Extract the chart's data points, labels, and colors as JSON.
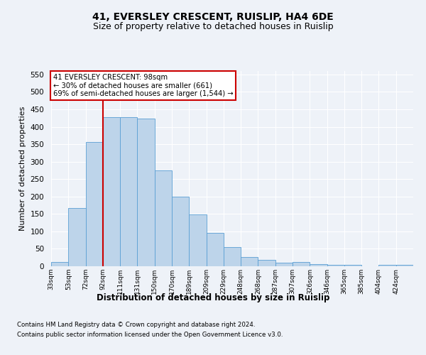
{
  "title": "41, EVERSLEY CRESCENT, RUISLIP, HA4 6DE",
  "subtitle": "Size of property relative to detached houses in Ruislip",
  "xlabel": "Distribution of detached houses by size in Ruislip",
  "ylabel": "Number of detached properties",
  "categories": [
    "33sqm",
    "53sqm",
    "72sqm",
    "92sqm",
    "111sqm",
    "131sqm",
    "150sqm",
    "170sqm",
    "189sqm",
    "209sqm",
    "229sqm",
    "248sqm",
    "268sqm",
    "287sqm",
    "307sqm",
    "326sqm",
    "346sqm",
    "365sqm",
    "385sqm",
    "404sqm",
    "424sqm"
  ],
  "values": [
    13,
    168,
    357,
    428,
    428,
    424,
    275,
    200,
    148,
    95,
    55,
    26,
    19,
    11,
    12,
    7,
    5,
    4,
    1,
    4,
    4
  ],
  "bar_color": "#bdd4ea",
  "bar_edge_color": "#5a9fd4",
  "annotation_text": "41 EVERSLEY CRESCENT: 98sqm\n← 30% of detached houses are smaller (661)\n69% of semi-detached houses are larger (1,544) →",
  "annotation_box_color": "#ffffff",
  "annotation_box_edge": "#cc0000",
  "vline_color": "#cc0000",
  "vline_x_index": 3,
  "ylim": [
    0,
    560
  ],
  "yticks": [
    0,
    50,
    100,
    150,
    200,
    250,
    300,
    350,
    400,
    450,
    500,
    550
  ],
  "footnote1": "Contains HM Land Registry data © Crown copyright and database right 2024.",
  "footnote2": "Contains public sector information licensed under the Open Government Licence v3.0.",
  "bg_color": "#eef2f8",
  "plot_bg_color": "#eef2f8",
  "title_fontsize": 10,
  "subtitle_fontsize": 9,
  "xlabel_fontsize": 8.5,
  "ylabel_fontsize": 8
}
